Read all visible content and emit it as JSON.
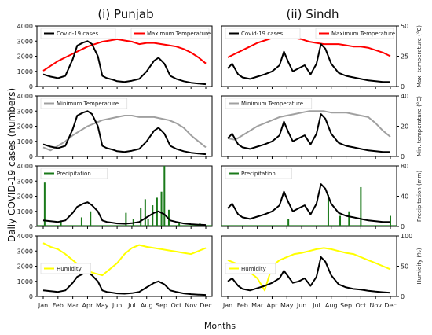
{
  "figure": {
    "column_titles": [
      "(i) Punjab",
      "(ii) Sindh"
    ],
    "ylabel": "Daily COVID-19 cases (numbers)",
    "xlabel": "Months",
    "months": [
      "Jan",
      "Feb",
      "Mar",
      "Apr",
      "May",
      "Jun",
      "Jul",
      "Aug",
      "Sep",
      "Oct",
      "Nov",
      "Dec"
    ],
    "cases_ticks": [
      "0",
      "1000",
      "2000",
      "3000",
      "4000"
    ]
  },
  "chart_data": {
    "type": "line",
    "x_unit": "month index (0 = Jan, 11 = Dec)",
    "panels": [
      {
        "region": "Punjab",
        "row": 1,
        "series_cases": {
          "name": "Covid-19 cases",
          "color": "#000000",
          "x": [
            0,
            0.5,
            1,
            1.5,
            2,
            2.3,
            2.7,
            3,
            3.3,
            3.7,
            4,
            4.3,
            4.7,
            5,
            5.5,
            6,
            6.5,
            7,
            7.5,
            7.8,
            8.2,
            8.6,
            9,
            9.5,
            10,
            10.5,
            11
          ],
          "values": [
            800,
            650,
            550,
            700,
            1800,
            2700,
            2900,
            3000,
            2800,
            2000,
            700,
            550,
            450,
            350,
            300,
            380,
            500,
            1000,
            1700,
            1900,
            1500,
            700,
            500,
            350,
            250,
            200,
            150
          ]
        },
        "series_env": {
          "name": "Maximum Temperature",
          "color": "#ff0000",
          "x": [
            0,
            0.5,
            1,
            1.5,
            2,
            2.5,
            3,
            3.5,
            4,
            4.5,
            5,
            5.5,
            6,
            6.5,
            7,
            7.5,
            8,
            8.5,
            9,
            9.5,
            10,
            10.5,
            11
          ],
          "values": [
            13,
            17,
            21,
            24,
            27,
            30,
            33,
            35,
            37,
            38,
            39,
            38,
            37,
            35,
            36,
            36,
            35,
            34,
            33,
            31,
            28,
            24,
            19
          ]
        },
        "ylim_cases": [
          0,
          4000
        ],
        "ylim_env": [
          0,
          50
        ],
        "env_ticks": [
          "0",
          "25",
          "50"
        ],
        "env_label": "Max. temperature (°C)"
      },
      {
        "region": "Sindh",
        "row": 1,
        "series_cases": {
          "name": "Covid-19 cases",
          "color": "#000000",
          "x": [
            0,
            0.3,
            0.7,
            1,
            1.5,
            2,
            2.5,
            3,
            3.5,
            3.8,
            4.1,
            4.4,
            4.8,
            5.2,
            5.6,
            6,
            6.3,
            6.6,
            7,
            7.5,
            8,
            8.5,
            9,
            9.5,
            10,
            10.5,
            11
          ],
          "values": [
            1200,
            1500,
            800,
            600,
            500,
            650,
            800,
            1000,
            1400,
            2300,
            1600,
            1000,
            1200,
            1400,
            800,
            1500,
            2800,
            2500,
            1500,
            900,
            700,
            600,
            500,
            400,
            350,
            300,
            300
          ]
        },
        "series_env": {
          "name": "Maximum Temperature",
          "color": "#ff0000",
          "x": [
            0,
            0.5,
            1,
            1.5,
            2,
            2.5,
            3,
            3.5,
            4,
            4.5,
            5,
            5.5,
            6,
            6.5,
            7,
            7.5,
            8,
            8.5,
            9,
            9.5,
            10,
            10.5,
            11
          ],
          "values": [
            24,
            27,
            30,
            33,
            36,
            38,
            40,
            41,
            41,
            40,
            39,
            37,
            36,
            35,
            35,
            35,
            34,
            33,
            33,
            32,
            30,
            28,
            25
          ]
        },
        "ylim_cases": [
          0,
          4000
        ],
        "ylim_env": [
          0,
          50
        ],
        "env_ticks": [
          "0",
          "25",
          "50"
        ],
        "env_label": "Max. temperature (°C)"
      },
      {
        "region": "Punjab",
        "row": 2,
        "series_cases": {
          "name": "Covid-19 cases",
          "color": "#000000",
          "x": [
            0,
            0.5,
            1,
            1.5,
            2,
            2.3,
            2.7,
            3,
            3.3,
            3.7,
            4,
            4.3,
            4.7,
            5,
            5.5,
            6,
            6.5,
            7,
            7.5,
            7.8,
            8.2,
            8.6,
            9,
            9.5,
            10,
            10.5,
            11
          ],
          "values": [
            800,
            650,
            550,
            700,
            1800,
            2700,
            2900,
            3000,
            2800,
            2000,
            700,
            550,
            450,
            350,
            300,
            380,
            500,
            1000,
            1700,
            1900,
            1500,
            700,
            500,
            350,
            250,
            200,
            150
          ]
        },
        "series_env": {
          "name": "Minimum Temperature",
          "color": "#a0a0a0",
          "x": [
            0,
            0.5,
            1,
            1.5,
            2,
            2.5,
            3,
            3.5,
            4,
            4.5,
            5,
            5.5,
            6,
            6.5,
            7,
            7.5,
            8,
            8.5,
            9,
            9.5,
            10,
            10.5,
            11
          ],
          "values": [
            6,
            4,
            7,
            10,
            14,
            17,
            20,
            22,
            24,
            25,
            26,
            27,
            27,
            26,
            26,
            26,
            25,
            24,
            22,
            19,
            14,
            10,
            6
          ]
        },
        "ylim_cases": [
          0,
          4000
        ],
        "ylim_env": [
          0,
          40
        ],
        "env_ticks": [
          "0",
          "20",
          "40"
        ],
        "env_label": "Min. temperature (°C)"
      },
      {
        "region": "Sindh",
        "row": 2,
        "series_cases": {
          "name": "Covid-19 cases",
          "color": "#000000",
          "x": [
            0,
            0.3,
            0.7,
            1,
            1.5,
            2,
            2.5,
            3,
            3.5,
            3.8,
            4.1,
            4.4,
            4.8,
            5.2,
            5.6,
            6,
            6.3,
            6.6,
            7,
            7.5,
            8,
            8.5,
            9,
            9.5,
            10,
            10.5,
            11
          ],
          "values": [
            1200,
            1500,
            800,
            600,
            500,
            650,
            800,
            1000,
            1400,
            2300,
            1600,
            1000,
            1200,
            1400,
            800,
            1500,
            2800,
            2500,
            1500,
            900,
            700,
            600,
            500,
            400,
            350,
            300,
            300
          ]
        },
        "series_env": {
          "name": "Minimum Temperature",
          "color": "#a0a0a0",
          "x": [
            0,
            0.5,
            1,
            1.5,
            2,
            2.5,
            3,
            3.5,
            4,
            4.5,
            5,
            5.5,
            6,
            6.5,
            7,
            7.5,
            8,
            8.5,
            9,
            9.5,
            10,
            10.5,
            11
          ],
          "values": [
            12,
            11,
            14,
            17,
            20,
            22,
            24,
            26,
            27,
            28,
            29,
            30,
            30,
            30,
            29,
            29,
            29,
            28,
            27,
            26,
            22,
            17,
            13
          ]
        },
        "ylim_cases": [
          0,
          4000
        ],
        "ylim_env": [
          0,
          40
        ],
        "env_ticks": [
          "0",
          "20",
          "40"
        ],
        "env_label": "Min. temperature (°C)"
      },
      {
        "region": "Punjab",
        "row": 3,
        "series_cases": {
          "name": "Covid-19 cases",
          "color": "#000000",
          "x": [
            0,
            0.5,
            1,
            1.5,
            2,
            2.3,
            2.7,
            3,
            3.3,
            3.7,
            4,
            4.3,
            4.7,
            5,
            5.5,
            6,
            6.5,
            7,
            7.5,
            7.8,
            8.2,
            8.6,
            9,
            9.5,
            10,
            10.5,
            11
          ],
          "values": [
            400,
            350,
            300,
            400,
            900,
            1300,
            1500,
            1600,
            1400,
            1000,
            400,
            300,
            250,
            200,
            180,
            220,
            300,
            600,
            900,
            1000,
            800,
            400,
            300,
            200,
            150,
            120,
            100
          ]
        },
        "series_env": {
          "name": "Precipitation",
          "color": "#1a7a1a",
          "type": "spikes",
          "x": [
            0.1,
            1.2,
            2.6,
            3.2,
            5.6,
            6.1,
            6.6,
            6.9,
            7.1,
            7.4,
            7.7,
            8.0,
            8.2,
            8.5,
            9.2,
            10.6
          ],
          "values": [
            58,
            8,
            12,
            20,
            18,
            10,
            24,
            36,
            10,
            28,
            38,
            46,
            80,
            22,
            6,
            4
          ]
        },
        "ylim_cases": [
          0,
          4000
        ],
        "ylim_env": [
          0,
          80
        ],
        "env_ticks": [
          "0",
          "40",
          "80"
        ],
        "env_label": "Precipitation (mm)"
      },
      {
        "region": "Sindh",
        "row": 3,
        "series_cases": {
          "name": "Covid-19 cases",
          "color": "#000000",
          "x": [
            0,
            0.3,
            0.7,
            1,
            1.5,
            2,
            2.5,
            3,
            3.5,
            3.8,
            4.1,
            4.4,
            4.8,
            5.2,
            5.6,
            6,
            6.3,
            6.6,
            7,
            7.5,
            8,
            8.5,
            9,
            9.5,
            10,
            10.5,
            11
          ],
          "values": [
            1200,
            1500,
            800,
            600,
            500,
            650,
            800,
            1000,
            1400,
            2300,
            1600,
            1000,
            1200,
            1400,
            800,
            1500,
            2800,
            2500,
            1500,
            900,
            700,
            600,
            500,
            400,
            350,
            300,
            300
          ]
        },
        "series_env": {
          "name": "Precipitation",
          "color": "#1a7a1a",
          "type": "spikes",
          "x": [
            4.1,
            6.8,
            7.6,
            8.2,
            9.0,
            11.0
          ],
          "values": [
            10,
            42,
            14,
            20,
            52,
            14
          ]
        },
        "ylim_cases": [
          0,
          4000
        ],
        "ylim_env": [
          0,
          80
        ],
        "env_ticks": [
          "0",
          "40",
          "80"
        ],
        "env_label": "Precipitation (mm)"
      },
      {
        "region": "Punjab",
        "row": 4,
        "series_cases": {
          "name": "Covid-19 cases",
          "color": "#000000",
          "x": [
            0,
            0.5,
            1,
            1.5,
            2,
            2.3,
            2.7,
            3,
            3.3,
            3.7,
            4,
            4.3,
            4.7,
            5,
            5.5,
            6,
            6.5,
            7,
            7.5,
            7.8,
            8.2,
            8.6,
            9,
            9.5,
            10,
            10.5,
            11
          ],
          "values": [
            400,
            350,
            300,
            400,
            900,
            1300,
            1500,
            1600,
            1400,
            1000,
            400,
            300,
            250,
            200,
            180,
            220,
            300,
            600,
            900,
            1000,
            800,
            400,
            300,
            200,
            150,
            120,
            100
          ]
        },
        "series_env": {
          "name": "Humidity",
          "color": "#ffff00",
          "x": [
            0,
            0.5,
            1,
            1.5,
            2,
            2.5,
            3,
            3.5,
            4,
            4.5,
            5,
            5.5,
            6,
            6.5,
            7,
            7.5,
            8,
            8.5,
            9,
            9.5,
            10,
            10.5,
            11
          ],
          "values": [
            88,
            82,
            78,
            70,
            60,
            50,
            42,
            38,
            35,
            45,
            55,
            70,
            80,
            85,
            82,
            80,
            78,
            76,
            74,
            72,
            70,
            75,
            80
          ]
        },
        "ylim_cases": [
          0,
          4000
        ],
        "ylim_env": [
          0,
          100
        ],
        "env_ticks": [
          "0",
          "50",
          "100"
        ],
        "env_label": "Humidity (%)"
      },
      {
        "region": "Sindh",
        "row": 4,
        "series_cases": {
          "name": "Covid-19 cases",
          "color": "#000000",
          "x": [
            0,
            0.3,
            0.7,
            1,
            1.5,
            2,
            2.5,
            3,
            3.5,
            3.8,
            4.1,
            4.4,
            4.8,
            5.2,
            5.6,
            6,
            6.3,
            6.6,
            7,
            7.5,
            8,
            8.5,
            9,
            9.5,
            10,
            10.5,
            11
          ],
          "values": [
            1000,
            1200,
            700,
            500,
            400,
            550,
            700,
            900,
            1200,
            1700,
            1300,
            900,
            1000,
            1200,
            700,
            1300,
            2600,
            2300,
            1400,
            800,
            600,
            500,
            450,
            380,
            320,
            280,
            250
          ]
        },
        "series_env": {
          "name": "Humidity",
          "color": "#ffff00",
          "x": [
            0,
            0.5,
            1,
            1.5,
            2,
            2.5,
            3,
            3.5,
            4,
            4.5,
            5,
            5.5,
            6,
            6.5,
            7,
            7.5,
            8,
            8.5,
            9,
            9.5,
            10,
            10.5,
            11
          ],
          "values": [
            60,
            55,
            50,
            40,
            30,
            10,
            50,
            60,
            65,
            70,
            72,
            75,
            78,
            80,
            78,
            75,
            72,
            70,
            65,
            60,
            55,
            50,
            45
          ]
        },
        "ylim_cases": [
          0,
          4000
        ],
        "ylim_env": [
          0,
          100
        ],
        "env_ticks": [
          "0",
          "50",
          "100"
        ],
        "env_label": "Humidity (%)"
      }
    ]
  }
}
